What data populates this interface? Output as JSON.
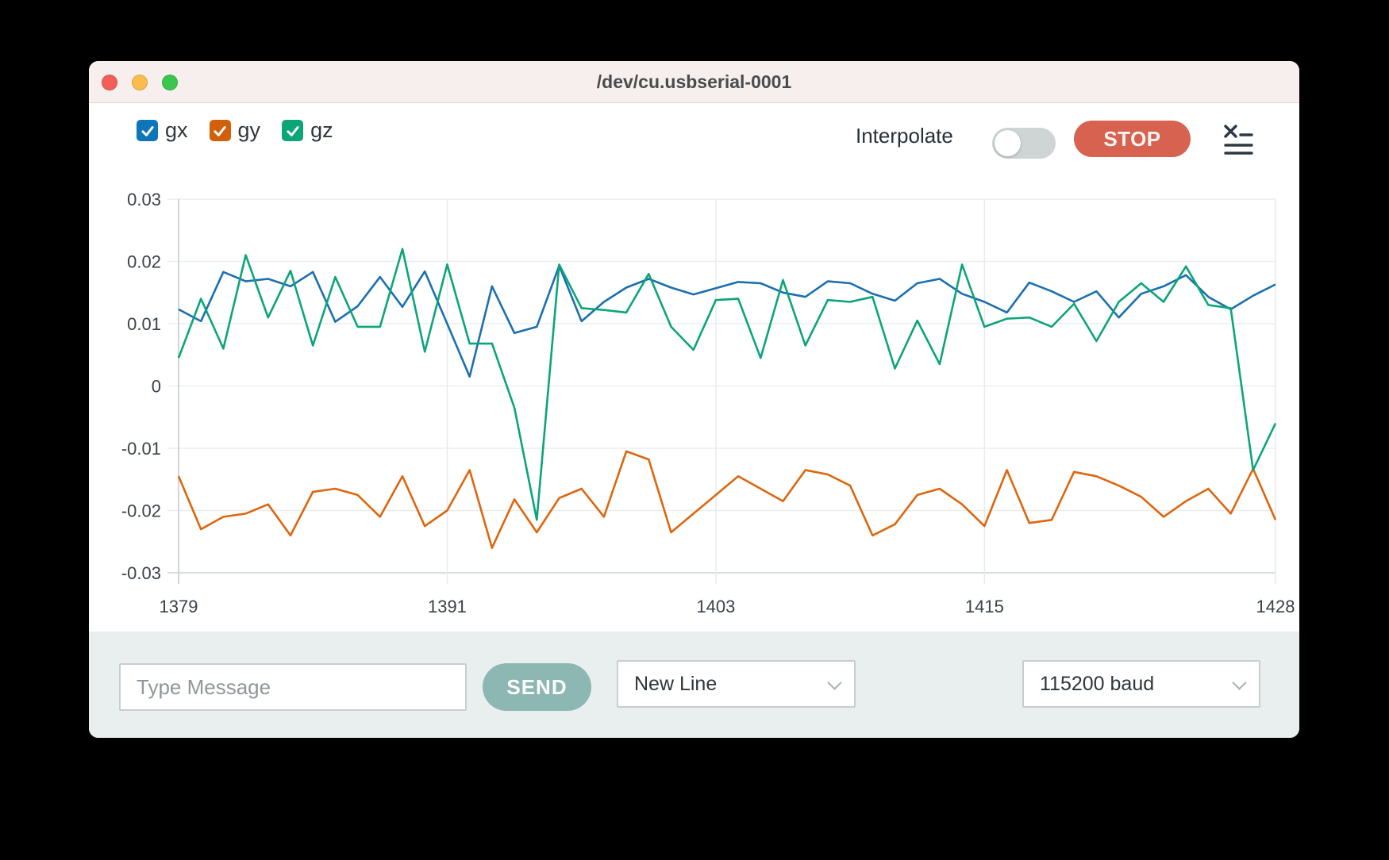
{
  "window": {
    "title": "/dev/cu.usbserial-0001",
    "traffic_lights": [
      {
        "name": "close",
        "color": "#f25f58"
      },
      {
        "name": "minimize",
        "color": "#f9bd4e"
      },
      {
        "name": "maximize",
        "color": "#3bc64e"
      }
    ]
  },
  "legend": {
    "items": [
      {
        "label": "gx",
        "checked": true,
        "color": "#0e76b8"
      },
      {
        "label": "gy",
        "checked": true,
        "color": "#d2600b"
      },
      {
        "label": "gz",
        "checked": true,
        "color": "#0ca578"
      }
    ]
  },
  "toolbar": {
    "interpolate_label": "Interpolate",
    "interpolate_enabled": false,
    "stop_label": "STOP"
  },
  "chart_data": {
    "type": "line",
    "title": "",
    "xlabel": "",
    "ylabel": "",
    "xlim": [
      1379,
      1428
    ],
    "ylim": [
      -0.03,
      0.03
    ],
    "xticks": [
      1379,
      1391,
      1403,
      1415,
      1428
    ],
    "yticks": [
      0.03,
      0.02,
      0.01,
      0,
      -0.01,
      -0.02,
      -0.03
    ],
    "grid": true,
    "legend_position": "top-left",
    "x": [
      1379,
      1380,
      1381,
      1382,
      1383,
      1384,
      1385,
      1386,
      1387,
      1388,
      1389,
      1390,
      1391,
      1392,
      1393,
      1394,
      1395,
      1396,
      1397,
      1398,
      1399,
      1400,
      1401,
      1402,
      1403,
      1404,
      1405,
      1406,
      1407,
      1408,
      1409,
      1410,
      1411,
      1412,
      1413,
      1414,
      1415,
      1416,
      1417,
      1418,
      1419,
      1420,
      1421,
      1422,
      1423,
      1424,
      1425,
      1426,
      1427,
      1428
    ],
    "series": [
      {
        "name": "gx",
        "color": "#1b6fb0",
        "values": [
          0.0123,
          0.0104,
          0.0183,
          0.0168,
          0.0172,
          0.016,
          0.0183,
          0.0103,
          0.0128,
          0.0175,
          0.0127,
          0.0184,
          0.01,
          0.0015,
          0.016,
          0.0085,
          0.0095,
          0.0193,
          0.0104,
          0.0135,
          0.0158,
          0.0172,
          0.0158,
          0.0147,
          0.0157,
          0.0167,
          0.0165,
          0.015,
          0.0143,
          0.0168,
          0.0165,
          0.0148,
          0.0137,
          0.0165,
          0.0172,
          0.0148,
          0.0135,
          0.0118,
          0.0166,
          0.0152,
          0.0135,
          0.0152,
          0.011,
          0.0148,
          0.016,
          0.0178,
          0.0143,
          0.0123,
          0.0145,
          0.0163
        ]
      },
      {
        "name": "gy",
        "color": "#dd660e",
        "values": [
          -0.0145,
          -0.023,
          -0.021,
          -0.0205,
          -0.019,
          -0.024,
          -0.017,
          -0.0165,
          -0.0175,
          -0.021,
          -0.0145,
          -0.0225,
          -0.02,
          -0.0135,
          -0.026,
          -0.0182,
          -0.0235,
          -0.018,
          -0.0165,
          -0.021,
          -0.0105,
          -0.0118,
          -0.0235,
          -0.0205,
          -0.0175,
          -0.0145,
          -0.0165,
          -0.0185,
          -0.0135,
          -0.0142,
          -0.016,
          -0.024,
          -0.0222,
          -0.0175,
          -0.0165,
          -0.019,
          -0.0225,
          -0.0135,
          -0.022,
          -0.0215,
          -0.0138,
          -0.0145,
          -0.016,
          -0.0178,
          -0.021,
          -0.0185,
          -0.0165,
          -0.0205,
          -0.0133,
          -0.0215
        ]
      },
      {
        "name": "gz",
        "color": "#0ba578",
        "values": [
          0.0045,
          0.014,
          0.006,
          0.021,
          0.011,
          0.0185,
          0.0065,
          0.0175,
          0.0095,
          0.0095,
          0.022,
          0.0055,
          0.0195,
          0.0068,
          0.0068,
          -0.0035,
          -0.0215,
          0.0195,
          0.0125,
          0.0122,
          0.0118,
          0.018,
          0.0095,
          0.0058,
          0.0138,
          0.014,
          0.0045,
          0.017,
          0.0065,
          0.0138,
          0.0135,
          0.0143,
          0.0028,
          0.0105,
          0.0035,
          0.0195,
          0.0095,
          0.0108,
          0.011,
          0.0095,
          0.0132,
          0.0072,
          0.0135,
          0.0165,
          0.0135,
          0.0192,
          0.013,
          0.0125,
          -0.0135,
          -0.006
        ]
      }
    ]
  },
  "bottom_bar": {
    "message_input": {
      "placeholder": "Type Message",
      "value": ""
    },
    "send_label": "SEND",
    "line_ending_select": {
      "value": "New Line"
    },
    "baud_select": {
      "value": "115200 baud"
    }
  }
}
